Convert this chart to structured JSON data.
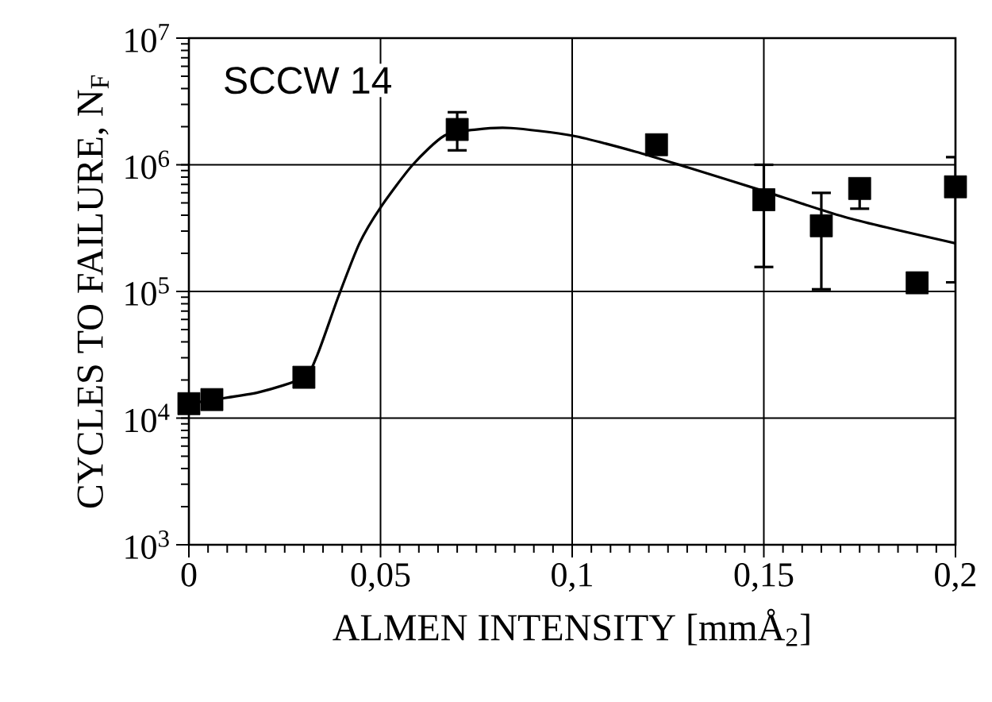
{
  "chart_data": {
    "type": "scatter",
    "xlabel": "ALMEN INTENSITY [mmÅ$_{2}$]",
    "ylabel": "CYCLES TO FAILURE, N$_{F}$",
    "annotations": [
      "SCCW 14"
    ],
    "log": "y",
    "grid": true,
    "marker": "square",
    "xlim": [
      0,
      0.2
    ],
    "ylim": [
      1000,
      10000000
    ],
    "xticks": [
      0,
      {
        "value": 0.05,
        "label": "0,05"
      },
      {
        "value": 0.1,
        "label": "0,1"
      },
      {
        "value": 0.15,
        "label": "0,15"
      },
      {
        "value": 0.2,
        "label": "0,2"
      }
    ],
    "yticks": [
      {
        "value": 1000,
        "label": "10$^{3}$"
      },
      {
        "value": 10000,
        "label": "10$^{4}$"
      },
      {
        "value": 100000,
        "label": "10$^{5}$"
      },
      {
        "value": 1000000,
        "label": "10$^{6}$"
      },
      {
        "value": 10000000,
        "label": "10$^{7}$"
      }
    ],
    "series": [
      {
        "color": "#000000",
        "x": [
          0,
          0.006,
          0.03,
          0.07,
          0.122,
          0.15,
          0.165,
          0.175,
          0.19,
          0.2
        ],
        "values": [
          13000,
          14000,
          21000,
          1900000,
          1440000,
          530000,
          330000,
          650000,
          117000,
          670000
        ],
        "errors": [
          null,
          null,
          null,
          [
            1300000,
            2600000
          ],
          null,
          [
            156000,
            1000000
          ],
          [
            104000,
            600000
          ],
          [
            450000,
            650000
          ],
          null,
          [
            118000,
            1150000
          ]
        ]
      },
      {
        "type": "line",
        "color": "#000000",
        "marker": "none",
        "x": [
          0,
          0.0065,
          0.0183,
          0.03,
          0.0335,
          0.039,
          0.0445,
          0.05,
          0.0584,
          0.0667,
          0.075,
          0.084,
          0.1,
          0.1165,
          0.1303,
          0.15,
          0.172,
          0.2
        ],
        "values": [
          13000,
          14000,
          16000,
          21000,
          31500,
          91000,
          240000,
          460000,
          1000000,
          1700000,
          1900000,
          1950000,
          1700000,
          1270000,
          950000,
          620000,
          380000,
          240000
        ]
      }
    ]
  }
}
